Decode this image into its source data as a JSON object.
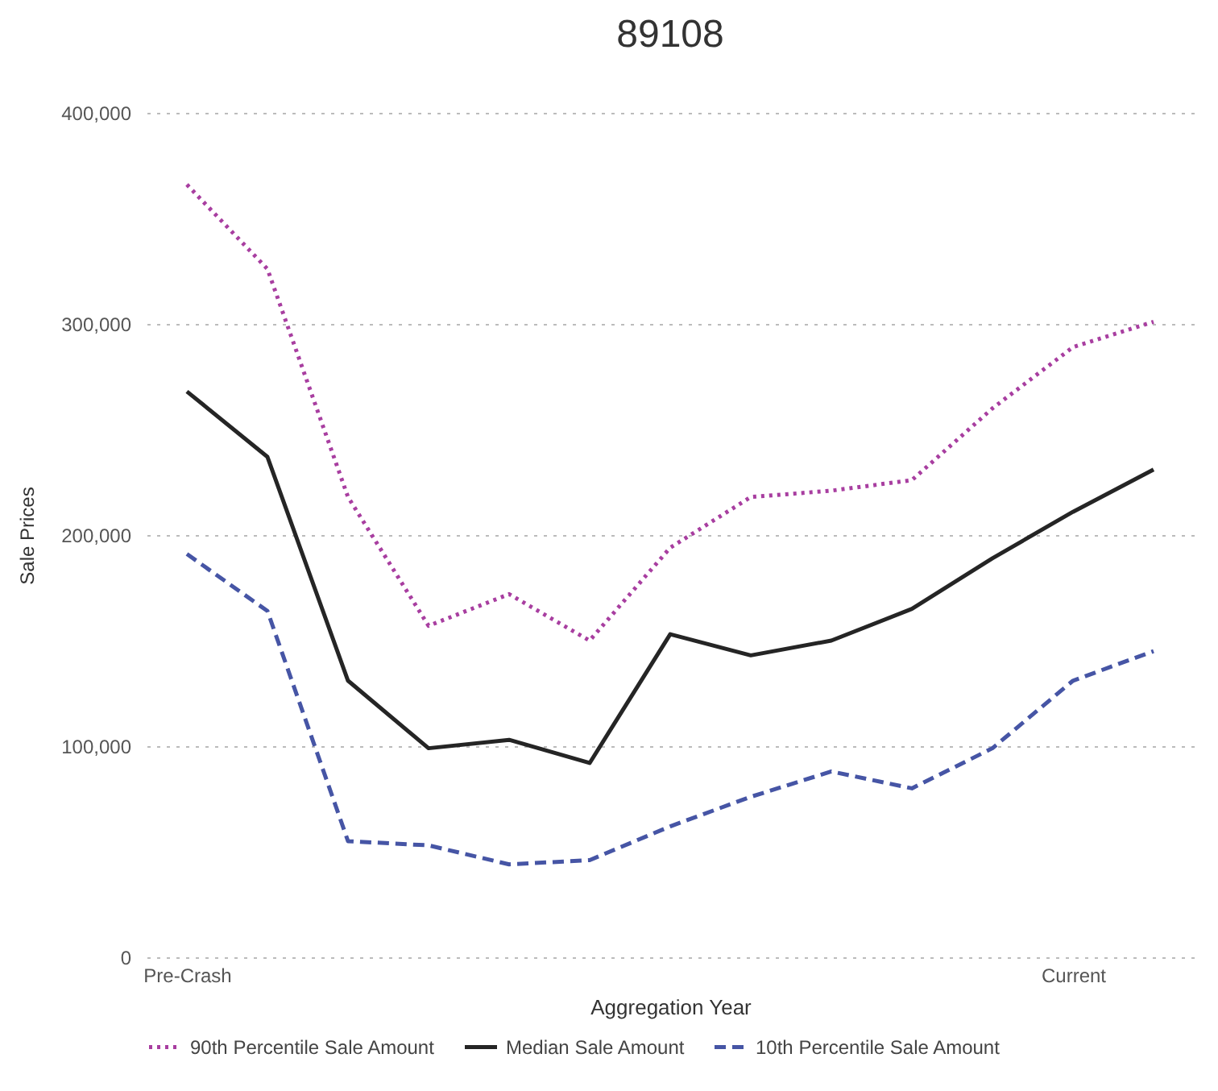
{
  "chart_data": {
    "type": "line",
    "title": "89108",
    "xlabel": "Aggregation Year",
    "ylabel": "Sale Prices",
    "categories": [
      "Pre-Crash",
      null,
      null,
      null,
      null,
      null,
      null,
      null,
      null,
      null,
      null,
      "Current",
      null
    ],
    "series": [
      {
        "name": "90th Percentile Sale Amount",
        "color": "#a83ea0",
        "line_style": "dotted",
        "values": [
          366000,
          326000,
          218000,
          157000,
          172000,
          150000,
          194000,
          218000,
          221000,
          226000,
          260000,
          289000,
          301000
        ]
      },
      {
        "name": "Median Sale Amount",
        "color": "#252525",
        "line_style": "solid",
        "values": [
          268000,
          237000,
          131000,
          99000,
          103000,
          92000,
          153000,
          143000,
          150000,
          165000,
          189000,
          211000,
          231000
        ]
      },
      {
        "name": "10th Percentile Sale Amount",
        "color": "#4655a5",
        "line_style": "dashed",
        "values": [
          191000,
          164000,
          55000,
          53000,
          44000,
          46000,
          62000,
          76000,
          88000,
          80000,
          99000,
          131000,
          145000
        ]
      }
    ],
    "ylim": [
      0,
      400000
    ],
    "yticks": [
      0,
      {
        "value": 100000,
        "label": "100,000"
      },
      {
        "value": 200000,
        "label": "200,000"
      },
      {
        "value": 300000,
        "label": "300,000"
      },
      {
        "value": 400000,
        "label": "400,000"
      }
    ],
    "grid": "y",
    "legend": "bottom"
  }
}
